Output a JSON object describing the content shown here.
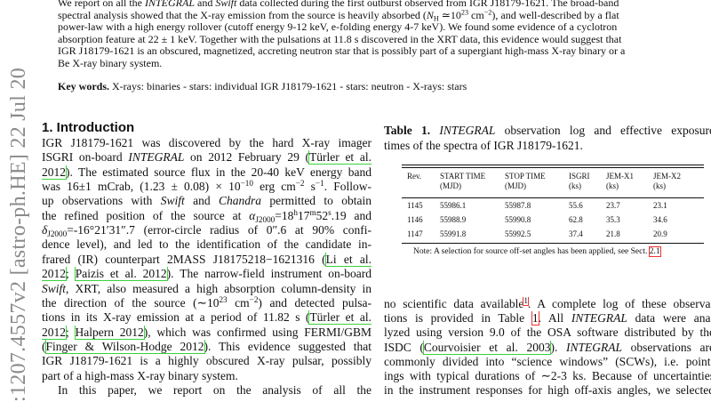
{
  "arxiv_stamp": ":1207.4557v2  [astro-ph.HE]  22 Jul 20",
  "abstract": {
    "lines": [
      [
        "We report on all the ",
        {
          "em": "INTEGRAL"
        },
        " and ",
        {
          "em": "Swift"
        },
        " data collected during the first outburst observed from IGR J18179-1621. The broad-band"
      ],
      [
        "spectral analysis showed that the X-ray emission from the source is heavily absorbed (",
        {
          "em": "N"
        },
        {
          "sub": "H"
        },
        " ≃10",
        {
          "sup": "23"
        },
        " cm",
        {
          "sup": "−2"
        },
        "), and well-described by a flat"
      ],
      [
        "power-law with a high energy rollover (cutoff energy 9-12 keV, e-folding energy 4-7 keV). We found some evidence of a cyclotron"
      ],
      [
        "absorption feature at 22 ± 1 keV. Together with the pulsations at 11.8 s discovered in the XRT data, this evidence would suggest that"
      ],
      [
        "IGR J18179-1621 is an obscured, magnetized, accreting neutron star that is possibly part of a supergiant high-mass X-ray binary or a"
      ],
      [
        "Be X-ray binary system."
      ]
    ]
  },
  "keywords": [
    {
      "b": "Key words."
    },
    " X-rays: binaries - stars: individual IGR J18179-1621 - stars: neutron - X-rays: stars"
  ],
  "introduction": {
    "heading": "1. Introduction",
    "paragraphs": [
      [
        [
          "IGR J18179-1621 was discovered by the hard X-ray imager"
        ],
        [
          "ISGRI on-board ",
          {
            "em": "INTEGRAL"
          },
          " on 2012 February 29 (",
          {
            "link": "Türler et al."
          }
        ],
        [
          {
            "link": "2012"
          },
          "). The estimated source flux in the 20-40 keV energy band"
        ],
        [
          "was 16±1 mCrab, (1.23 ± 0.08) × 10",
          {
            "sup": "−10"
          },
          " erg cm",
          {
            "sup": "−2"
          },
          " s",
          {
            "sup": "−1"
          },
          ". Follow-"
        ],
        [
          "up observations with ",
          {
            "em": "Swift"
          },
          " and ",
          {
            "em": "Chandra"
          },
          " permitted to obtain"
        ],
        [
          "the refined position of the source at ",
          {
            "em": "α"
          },
          {
            "sub": "J2000"
          },
          "=18",
          {
            "sup": "h"
          },
          "17",
          {
            "sup": "m"
          },
          "52",
          {
            "sup": "s"
          },
          ".19 and"
        ],
        [
          {
            "em": "δ"
          },
          {
            "sub": "J2000"
          },
          "=-16°21′31″.7 (error-circle radius of 0″.6 at 90% confi-"
        ],
        [
          "dence level), and led to the identification of the candidate in-"
        ],
        [
          "frared (IR) counterpart 2MASS J18175218−1621316 (",
          {
            "link": "Li et al."
          }
        ],
        [
          {
            "link": "2012"
          },
          "; ",
          {
            "link": "Paizis et al. 2012"
          },
          "). The narrow-field instrument on-board"
        ],
        [
          {
            "em": "Swift"
          },
          ", XRT, also measured a high absorption column-density in"
        ],
        [
          "the direction of the source (∼10",
          {
            "sup": "23"
          },
          " cm",
          {
            "sup": "−2"
          },
          ") and detected pulsa-"
        ],
        [
          "tions in its X-ray emission at a period of 11.82 s (",
          {
            "link": "Türler et al."
          }
        ],
        [
          {
            "link": "2012"
          },
          "; ",
          {
            "link": "Halpern 2012"
          },
          "), which was confirmed using FERMI/GBM"
        ],
        [
          "(",
          {
            "link": "Finger & Wilson-Hodge 2012"
          },
          "). This evidence suggested that"
        ],
        [
          "IGR J18179-1621 is a highly obscured X-ray pulsar, possibly"
        ],
        [
          "part of a high-mass X-ray binary system."
        ]
      ],
      [
        [
          "In this paper, we report on the analysis of all the"
        ]
      ]
    ]
  },
  "table": {
    "caption_lines": [
      [
        {
          "b": "Table 1."
        },
        " ",
        {
          "em": "INTEGRAL"
        },
        " observation log and effective exposure"
      ],
      [
        "times of the spectra of IGR J18179-1621."
      ]
    ],
    "header": [
      [
        "Rev."
      ],
      [
        "START TIME",
        "(MJD)"
      ],
      [
        "STOP TIME",
        "(MJD)"
      ],
      [
        "ISGRI",
        "(ks)"
      ],
      [
        "JEM-X1",
        "(ks)"
      ],
      [
        "JEM-X2",
        "(ks)"
      ]
    ],
    "rows": [
      [
        "1145",
        "55986.1",
        "55987.8",
        "55.6",
        "23.7",
        "23.1"
      ],
      [
        "1146",
        "55988.9",
        "55990.8",
        "62.8",
        "35.3",
        "34.6"
      ],
      [
        "1147",
        "55991.8",
        "55992.5",
        "37.4",
        "21.8",
        "20.9"
      ]
    ],
    "note": [
      "Note: A selection for source off-set angles has been applied, see Sect. ",
      {
        "ref": "2.1"
      }
    ]
  },
  "right_column": {
    "lines": [
      [
        "no scientific data available",
        {
          "fn": "1"
        },
        ". A complete log of these observa-"
      ],
      [
        "tions is provided in Table ",
        {
          "ref": "1"
        },
        ". All ",
        {
          "em": "INTEGRAL"
        },
        " data were ana-"
      ],
      [
        "lyzed using version 9.0 of the OSA software distributed by the"
      ],
      [
        "ISDC (",
        {
          "link": "Courvoisier et al. 2003"
        },
        "). ",
        {
          "em": "INTEGRAL"
        },
        " observations are"
      ],
      [
        "commonly divided into “science windows” (SCWs), i.e. point-"
      ],
      [
        "ings with typical durations of ∼2-3 ks. Because of uncertainties"
      ],
      [
        "in the instrument responses for high off-axis angles, we selected"
      ]
    ]
  }
}
